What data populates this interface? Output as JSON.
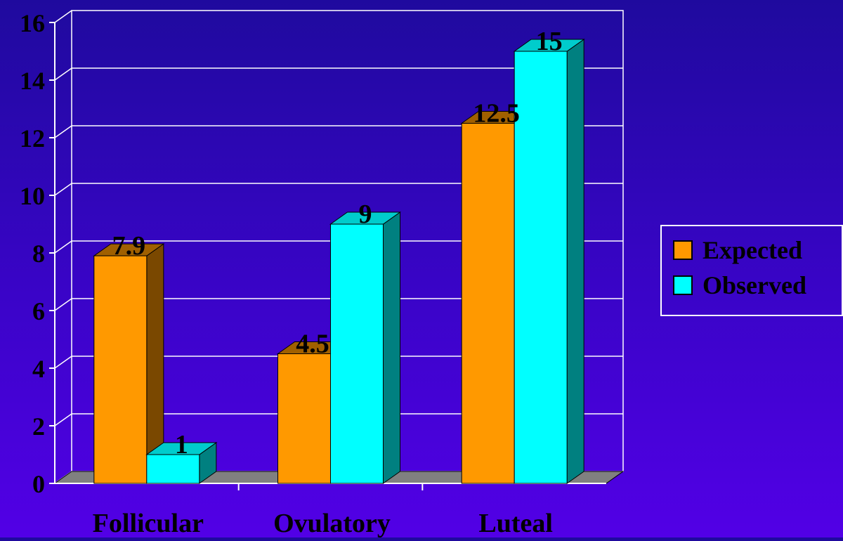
{
  "chart_data": {
    "type": "bar",
    "title": "",
    "xlabel": "",
    "ylabel": "",
    "categories": [
      "Follicular",
      "Ovulatory",
      "Luteal"
    ],
    "series": [
      {
        "name": "Expected",
        "values": [
          7.9,
          4.5,
          12.5
        ],
        "labels": [
          "7.9",
          "4.5",
          "12.5"
        ],
        "color": "#ff9900",
        "side_color": "#7a4800",
        "top_color": "#a06000"
      },
      {
        "name": "Observed",
        "values": [
          1,
          9,
          15
        ],
        "labels": [
          "1",
          "9",
          "15"
        ],
        "color": "#00ffff",
        "side_color": "#008080",
        "top_color": "#00cccc"
      }
    ],
    "ylim": [
      0,
      16
    ],
    "yticks": [
      0,
      2,
      4,
      6,
      8,
      10,
      12,
      14,
      16
    ],
    "ytick_labels": [
      "0",
      "2",
      "4",
      "6",
      "8",
      "10",
      "12",
      "14",
      "16"
    ],
    "grid": true,
    "legend_position": "right"
  }
}
